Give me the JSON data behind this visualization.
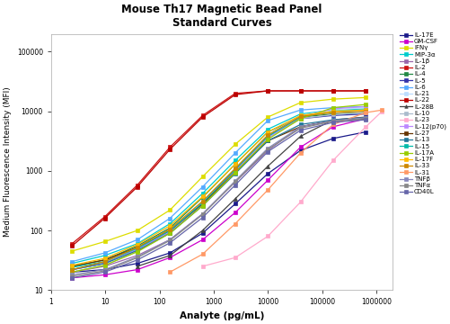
{
  "title": "Mouse Th17 Magnetic Bead Panel\nStandard Curves",
  "xlabel": "Analyte (pg/mL)",
  "ylabel": "Medium Fluorescence Intensity (MFI)",
  "xlim": [
    1,
    2000000
  ],
  "ylim": [
    10,
    200000
  ],
  "bg_color": "#ffffff",
  "series": [
    {
      "label": "IL-17E",
      "color": "#1a1a8a",
      "marker": "s",
      "x": [
        2.44,
        9.77,
        39.1,
        156,
        625,
        2500,
        10000,
        40000,
        160000,
        640000
      ],
      "y": [
        20,
        22,
        28,
        42,
        90,
        280,
        900,
        2200,
        3500,
        4500
      ]
    },
    {
      "label": "GM-CSF",
      "color": "#cc00cc",
      "marker": "s",
      "x": [
        2.44,
        9.77,
        39.1,
        156,
        625,
        2500,
        10000,
        40000,
        160000,
        640000
      ],
      "y": [
        16,
        18,
        22,
        35,
        70,
        200,
        700,
        2500,
        5500,
        7500
      ]
    },
    {
      "label": "IFNγ",
      "color": "#dddd00",
      "marker": "s",
      "x": [
        2.44,
        9.77,
        39.1,
        156,
        625,
        2500,
        10000,
        40000,
        160000,
        640000
      ],
      "y": [
        45,
        65,
        100,
        220,
        800,
        2800,
        8000,
        14000,
        16000,
        17000
      ]
    },
    {
      "label": "MIP-3α",
      "color": "#00cccc",
      "marker": "s",
      "x": [
        2.44,
        9.77,
        39.1,
        156,
        625,
        2500,
        10000,
        40000,
        160000,
        640000
      ],
      "y": [
        28,
        38,
        60,
        130,
        420,
        1500,
        5000,
        9000,
        10500,
        11000
      ]
    },
    {
      "label": "IL-1β",
      "color": "#9966aa",
      "marker": "s",
      "x": [
        2.44,
        9.77,
        39.1,
        156,
        625,
        2500,
        10000,
        40000,
        160000,
        640000
      ],
      "y": [
        20,
        25,
        38,
        70,
        190,
        650,
        2200,
        5500,
        7000,
        7500
      ]
    },
    {
      "label": "IL-2",
      "color": "#cc1111",
      "marker": "s",
      "x": [
        2.44,
        9.77,
        39.1,
        156,
        625,
        2500,
        10000,
        40000,
        160000,
        640000
      ],
      "y": [
        60,
        170,
        580,
        2500,
        8500,
        20000,
        22000,
        22000,
        22000,
        22000
      ]
    },
    {
      "label": "IL-4",
      "color": "#228844",
      "marker": "s",
      "x": [
        2.44,
        9.77,
        39.1,
        156,
        625,
        2500,
        10000,
        40000,
        160000,
        640000
      ],
      "y": [
        25,
        32,
        55,
        110,
        360,
        1300,
        4500,
        8000,
        9000,
        9500
      ]
    },
    {
      "label": "IL-5",
      "color": "#3333aa",
      "marker": "s",
      "x": [
        2.44,
        9.77,
        39.1,
        156,
        625,
        2500,
        10000,
        40000,
        160000,
        640000
      ],
      "y": [
        22,
        28,
        48,
        95,
        290,
        1050,
        3800,
        7500,
        8500,
        9000
      ]
    },
    {
      "label": "IL-6",
      "color": "#55aaff",
      "marker": "s",
      "x": [
        2.44,
        9.77,
        39.1,
        156,
        625,
        2500,
        10000,
        40000,
        160000,
        640000
      ],
      "y": [
        30,
        42,
        70,
        160,
        540,
        2000,
        7000,
        10500,
        11500,
        12000
      ]
    },
    {
      "label": "IL-21",
      "color": "#bbddff",
      "marker": "s",
      "x": [
        2.44,
        9.77,
        39.1,
        156,
        625,
        2500,
        10000,
        40000,
        160000,
        640000
      ],
      "y": [
        22,
        30,
        50,
        100,
        310,
        1100,
        4000,
        8500,
        10500,
        11500
      ]
    },
    {
      "label": "IL-22",
      "color": "#bb0000",
      "marker": "s",
      "x": [
        2.44,
        9.77,
        39.1,
        156,
        625,
        2500,
        10000,
        40000,
        160000,
        640000
      ],
      "y": [
        55,
        160,
        540,
        2300,
        8000,
        19000,
        22000,
        22000,
        22000,
        22000
      ]
    },
    {
      "label": "IL-28B",
      "color": "#444444",
      "marker": "^",
      "x": [
        39.1,
        156,
        625,
        2500,
        10000,
        40000,
        160000,
        640000
      ],
      "y": [
        25,
        38,
        100,
        340,
        1200,
        3800,
        7200,
        8000
      ]
    },
    {
      "label": "IL-10",
      "color": "#aabbcc",
      "marker": "s",
      "x": [
        2.44,
        9.77,
        39.1,
        156,
        625,
        2500,
        10000,
        40000,
        160000,
        640000
      ],
      "y": [
        20,
        26,
        44,
        90,
        270,
        980,
        3600,
        7500,
        8800,
        9500
      ]
    },
    {
      "label": "IL-23",
      "color": "#ffaacc",
      "marker": "s",
      "x": [
        625,
        2500,
        10000,
        40000,
        160000,
        640000,
        1280000
      ],
      "y": [
        25,
        35,
        80,
        300,
        1500,
        5500,
        10000
      ]
    },
    {
      "label": "IL-12(p70)",
      "color": "#bb88ff",
      "marker": "s",
      "x": [
        2.44,
        9.77,
        39.1,
        156,
        625,
        2500,
        10000,
        40000,
        160000,
        640000
      ],
      "y": [
        22,
        28,
        48,
        95,
        280,
        1000,
        3600,
        8000,
        11000,
        12000
      ]
    },
    {
      "label": "IL-27",
      "color": "#663300",
      "marker": "s",
      "x": [
        2.44,
        9.77,
        39.1,
        156,
        625,
        2500,
        10000,
        40000,
        160000,
        640000
      ],
      "y": [
        25,
        32,
        52,
        100,
        280,
        950,
        3200,
        5500,
        7000,
        7500
      ]
    },
    {
      "label": "IL-13",
      "color": "#227799",
      "marker": "s",
      "x": [
        2.44,
        9.77,
        39.1,
        156,
        625,
        2500,
        10000,
        40000,
        160000,
        640000
      ],
      "y": [
        22,
        28,
        46,
        90,
        260,
        900,
        3200,
        6000,
        7200,
        7800
      ]
    },
    {
      "label": "IL-15",
      "color": "#00bbaa",
      "marker": "s",
      "x": [
        2.44,
        9.77,
        39.1,
        156,
        625,
        2500,
        10000,
        40000,
        160000,
        640000
      ],
      "y": [
        24,
        30,
        50,
        100,
        290,
        1050,
        3800,
        8000,
        10000,
        10500
      ]
    },
    {
      "label": "IL-17A",
      "color": "#99cc00",
      "marker": "s",
      "x": [
        2.44,
        9.77,
        39.1,
        156,
        625,
        2500,
        10000,
        40000,
        160000,
        640000
      ],
      "y": [
        20,
        26,
        44,
        90,
        260,
        940,
        3400,
        7500,
        11500,
        13000
      ]
    },
    {
      "label": "IL-17F",
      "color": "#ffbb00",
      "marker": "s",
      "x": [
        2.44,
        9.77,
        39.1,
        156,
        625,
        2500,
        10000,
        40000,
        160000,
        640000
      ],
      "y": [
        26,
        34,
        58,
        120,
        370,
        1300,
        4500,
        8500,
        10000,
        10500
      ]
    },
    {
      "label": "IL-33",
      "color": "#cc8800",
      "marker": "s",
      "x": [
        2.44,
        9.77,
        39.1,
        156,
        625,
        2500,
        10000,
        40000,
        160000,
        640000
      ],
      "y": [
        22,
        30,
        52,
        105,
        310,
        1100,
        4000,
        8200,
        9500,
        10000
      ]
    },
    {
      "label": "IL-31",
      "color": "#ff9966",
      "marker": "s",
      "x": [
        156,
        625,
        2500,
        10000,
        40000,
        160000,
        640000,
        1280000
      ],
      "y": [
        20,
        40,
        130,
        480,
        2000,
        6000,
        9500,
        10500
      ]
    },
    {
      "label": "TNFβ",
      "color": "#8888bb",
      "marker": "s",
      "x": [
        2.44,
        9.77,
        39.1,
        156,
        625,
        2500,
        10000,
        40000,
        160000,
        640000
      ],
      "y": [
        18,
        22,
        36,
        70,
        190,
        680,
        2400,
        5500,
        7000,
        7800
      ]
    },
    {
      "label": "TNFα",
      "color": "#888888",
      "marker": "s",
      "x": [
        2.44,
        9.77,
        39.1,
        156,
        625,
        2500,
        10000,
        40000,
        160000,
        640000
      ],
      "y": [
        17,
        21,
        35,
        68,
        185,
        660,
        2300,
        5200,
        6800,
        7500
      ]
    },
    {
      "label": "CD40L",
      "color": "#6666aa",
      "marker": "s",
      "x": [
        2.44,
        9.77,
        39.1,
        156,
        625,
        2500,
        10000,
        40000,
        160000,
        640000
      ],
      "y": [
        16,
        20,
        32,
        62,
        165,
        580,
        2100,
        4800,
        6500,
        7200
      ]
    }
  ]
}
